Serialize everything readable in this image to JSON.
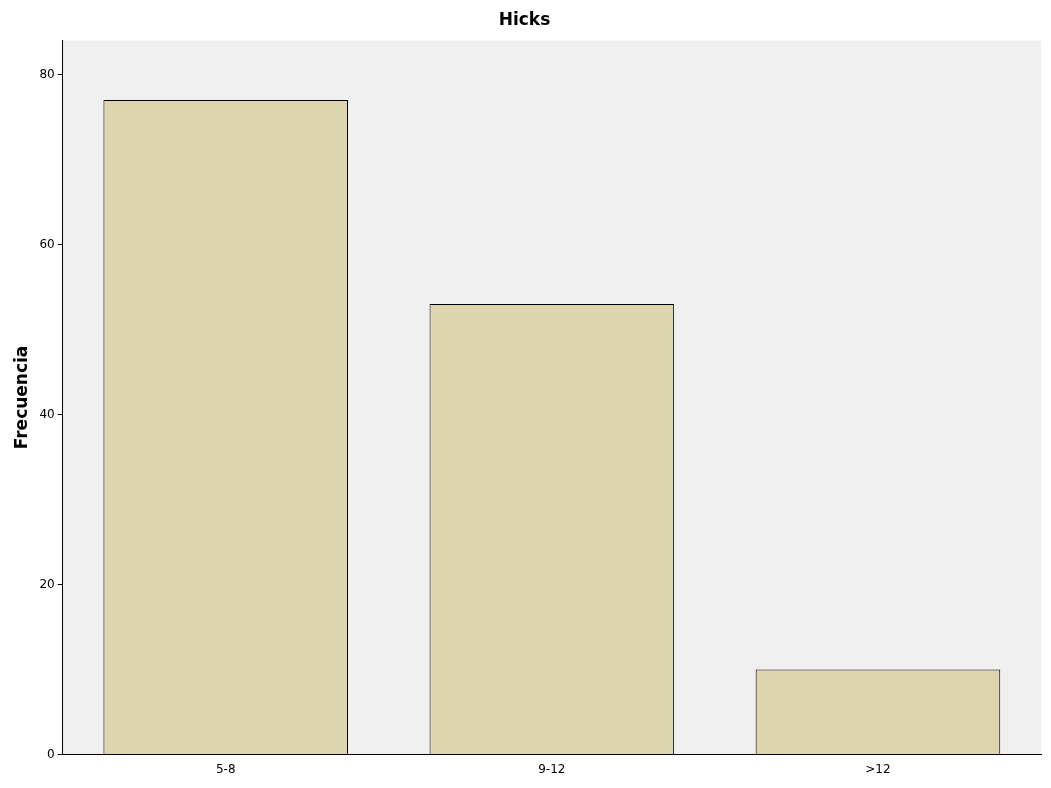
{
  "chart_data": {
    "type": "bar",
    "title": "Hicks",
    "ylabel": "Frecuencia",
    "categories": [
      "5-8",
      "9-12",
      ">12"
    ],
    "values": [
      77,
      53,
      10
    ],
    "color": "#ddd5ae",
    "ylim": [
      0,
      84
    ],
    "yticks": [
      0,
      20,
      40,
      60,
      80
    ],
    "grid": false,
    "legend": false
  }
}
